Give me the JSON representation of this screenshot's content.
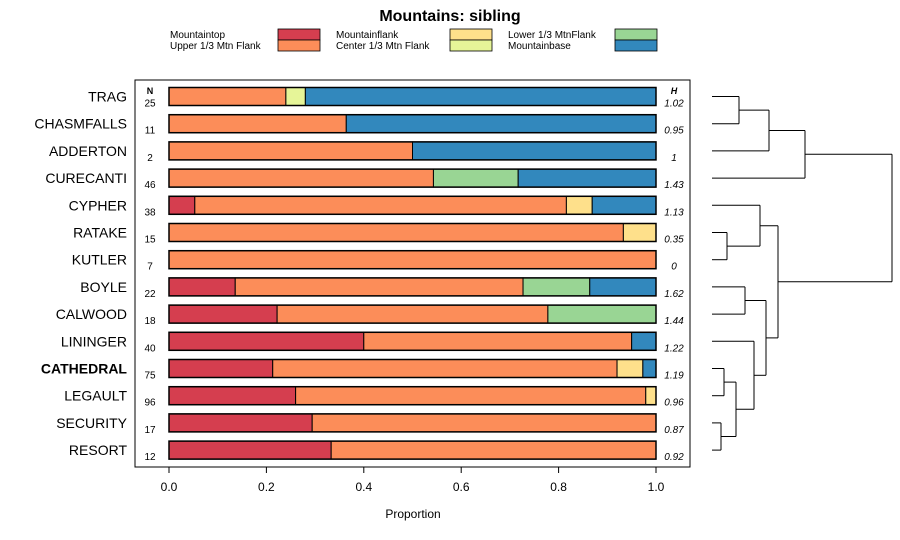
{
  "chart_data": {
    "type": "bar",
    "orientation": "horizontal",
    "stacked": true,
    "title": "Mountains: sibling",
    "xlabel": "Proportion",
    "xlim": [
      0,
      1
    ],
    "xticks": [
      0.0,
      0.2,
      0.4,
      0.6,
      0.8,
      1.0
    ],
    "xtick_labels": [
      "0.0",
      "0.2",
      "0.4",
      "0.6",
      "0.8",
      "1.0"
    ],
    "n_header": "N",
    "h_header": "H",
    "legend_position": "top",
    "series": [
      {
        "name": "Mountaintop",
        "color": "#d53e4f"
      },
      {
        "name": "Upper 1/3 Mtn Flank",
        "color": "#fc8d59"
      },
      {
        "name": "Mountainflank",
        "color": "#fee08b"
      },
      {
        "name": "Center 1/3 Mtn Flank",
        "color": "#e6f598"
      },
      {
        "name": "Lower 1/3 MtnFlank",
        "color": "#99d594"
      },
      {
        "name": "Mountainbase",
        "color": "#3288bd"
      }
    ],
    "rows": [
      {
        "label": "TRAG",
        "n": "25",
        "h": "1.02",
        "bold": false,
        "values": [
          0,
          0.24,
          0,
          0.04,
          0,
          0.72
        ]
      },
      {
        "label": "CHASMFALLS",
        "n": "11",
        "h": "0.95",
        "bold": false,
        "values": [
          0,
          0.364,
          0,
          0,
          0,
          0.636
        ]
      },
      {
        "label": "ADDERTON",
        "n": "2",
        "h": "1",
        "bold": false,
        "values": [
          0,
          0.5,
          0,
          0,
          0,
          0.5
        ]
      },
      {
        "label": "CURECANTI",
        "n": "46",
        "h": "1.43",
        "bold": false,
        "values": [
          0,
          0.543,
          0,
          0,
          0.174,
          0.283
        ]
      },
      {
        "label": "CYPHER",
        "n": "38",
        "h": "1.13",
        "bold": false,
        "values": [
          0.053,
          0.763,
          0.053,
          0,
          0,
          0.131
        ]
      },
      {
        "label": "RATAKE",
        "n": "15",
        "h": "0.35",
        "bold": false,
        "values": [
          0,
          0.933,
          0.067,
          0,
          0,
          0
        ]
      },
      {
        "label": "KUTLER",
        "n": "7",
        "h": "0",
        "bold": false,
        "values": [
          0,
          1.0,
          0,
          0,
          0,
          0
        ]
      },
      {
        "label": "BOYLE",
        "n": "22",
        "h": "1.62",
        "bold": false,
        "values": [
          0.136,
          0.591,
          0,
          0,
          0.137,
          0.136
        ]
      },
      {
        "label": "CALWOOD",
        "n": "18",
        "h": "1.44",
        "bold": false,
        "values": [
          0.222,
          0.556,
          0,
          0,
          0.222,
          0
        ]
      },
      {
        "label": "LININGER",
        "n": "40",
        "h": "1.22",
        "bold": false,
        "values": [
          0.4,
          0.55,
          0,
          0,
          0,
          0.05
        ]
      },
      {
        "label": "CATHEDRAL",
        "n": "75",
        "h": "1.19",
        "bold": true,
        "values": [
          0.213,
          0.707,
          0.053,
          0,
          0,
          0.027
        ]
      },
      {
        "label": "LEGAULT",
        "n": "96",
        "h": "0.96",
        "bold": false,
        "values": [
          0.26,
          0.719,
          0.021,
          0,
          0,
          0
        ]
      },
      {
        "label": "SECURITY",
        "n": "17",
        "h": "0.87",
        "bold": false,
        "values": [
          0.294,
          0.706,
          0,
          0,
          0,
          0
        ]
      },
      {
        "label": "RESORT",
        "n": "12",
        "h": "0.92",
        "bold": false,
        "values": [
          0.333,
          0.667,
          0,
          0,
          0,
          0
        ]
      }
    ],
    "dendrogram": {
      "leaves": [
        "TRAG",
        "CHASMFALLS",
        "ADDERTON",
        "CURECANTI",
        "CYPHER",
        "RATAKE",
        "KUTLER",
        "BOYLE",
        "CALWOOD",
        "LININGER",
        "CATHEDRAL",
        "LEGAULT",
        "SECURITY",
        "RESORT"
      ],
      "merges": [
        {
          "a": 0,
          "b": 1,
          "height": 0.09
        },
        {
          "a": "m0",
          "b": 2,
          "height": 0.19
        },
        {
          "a": "m1",
          "b": 3,
          "height": 0.31
        },
        {
          "a": 5,
          "b": 6,
          "height": 0.05
        },
        {
          "a": 4,
          "b": "m3",
          "height": 0.16
        },
        {
          "a": 12,
          "b": 13,
          "height": 0.03
        },
        {
          "a": 10,
          "b": 11,
          "height": 0.04
        },
        {
          "a": "m6",
          "b": "m5",
          "height": 0.08
        },
        {
          "a": 7,
          "b": 8,
          "height": 0.11
        },
        {
          "a": 9,
          "b": "m7",
          "height": 0.14
        },
        {
          "a": "m8",
          "b": "m9",
          "height": 0.18
        },
        {
          "a": "m4",
          "b": "m10",
          "height": 0.22
        },
        {
          "a": "m2",
          "b": "m11",
          "height": 0.6
        }
      ]
    }
  }
}
